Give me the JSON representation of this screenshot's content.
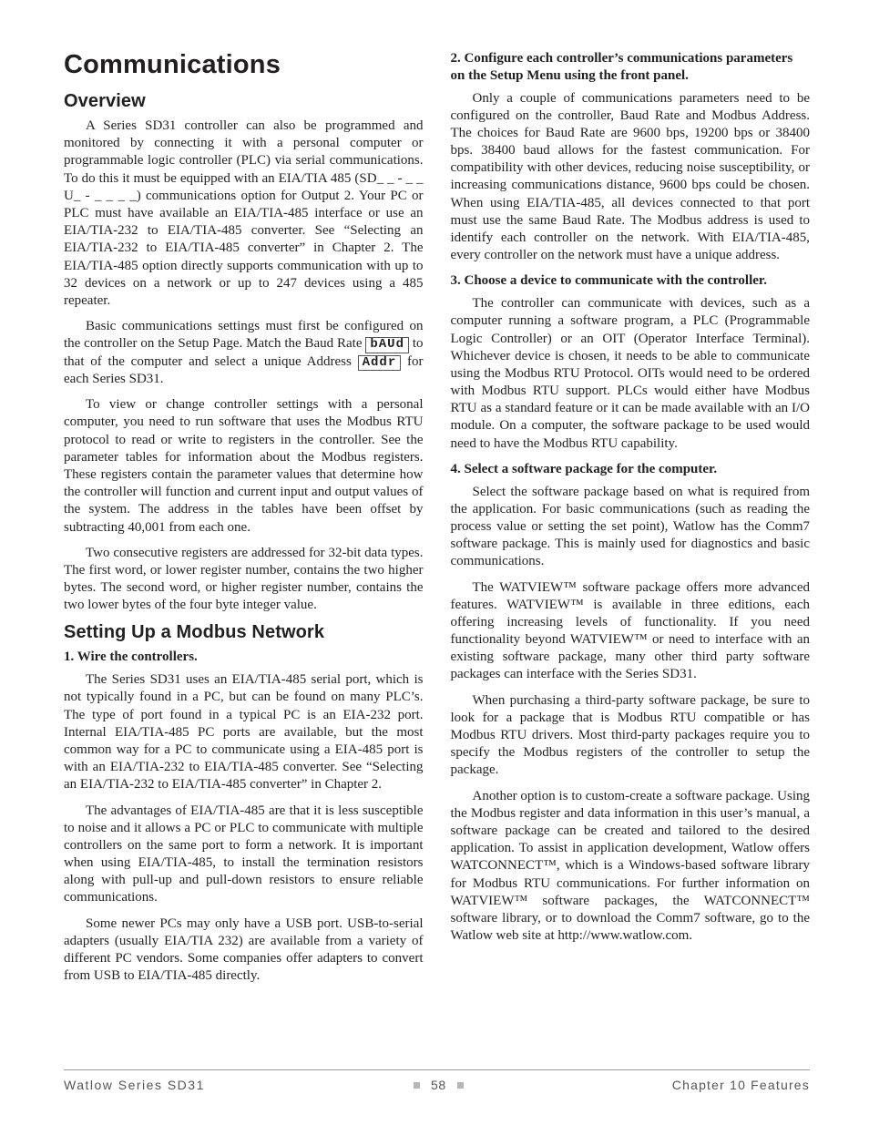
{
  "title": "Communications",
  "left": {
    "overview": {
      "heading": "Overview",
      "p1": "A Series SD31 controller can also be programmed and monitored by connecting it with a personal computer or programmable logic controller (PLC) via serial communications. To do this it must be equipped with an EIA/TIA 485 (SD_ _ - _ _ U_ - _ _ _ _) communications option for Output 2. Your PC or PLC must have available an EIA/TIA-485 interface or use an EIA/TIA-232 to EIA/TIA-485 converter. See “Selecting an EIA/TIA-232 to EIA/TIA-485 converter” in Chapter 2. The EIA/TIA-485 option directly supports communication with up to 32 devices on a network or up to 247 devices using a 485 repeater.",
      "p2a": "Basic communications settings must first be configured on the controller on the Setup Page. Match the Baud Rate ",
      "p2_seg1": "bAUd",
      "p2b": " to that of the computer and select a unique Address ",
      "p2_seg2": "Addr",
      "p2c": " for each Series SD31.",
      "p3": "To view or change controller settings with a personal computer, you need to run software that uses the Modbus RTU protocol to read or write to registers in the controller. See the parameter tables for information about the Modbus registers. These registers contain the parameter values that determine how the controller will function and current input and output values of the system. The address in the tables have been offset by subtracting 40,001 from each one.",
      "p4": "Two consecutive registers are addressed for 32-bit data types. The first word, or lower register number, contains the two higher bytes. The second word, or higher register number, contains the two lower bytes of the four byte integer value."
    },
    "setup": {
      "heading": "Setting Up a Modbus Network",
      "step1": "1. Wire the controllers.",
      "p1": "The Series SD31 uses an EIA/TIA-485 serial port, which is not typically found in a PC, but can be found on many PLC’s. The type of port found in a typical PC is an EIA-232 port. Internal EIA/TIA-485 PC ports are available, but the most common way for a PC to communicate using a EIA-485 port is with an EIA/TIA-232 to EIA/TIA-485 converter. See “Selecting an EIA/TIA-232 to EIA/TIA-485 converter” in Chapter 2.",
      "p2": "The advantages of EIA/TIA-485 are that it is less susceptible to noise and it allows a PC or PLC to communicate with multiple controllers on the same port to form a network. It is important when using EIA/TIA-485, to install the termination resistors along with pull-up and pull-down resistors to ensure reliable communications.",
      "p3": "Some newer PCs may only have a USB port. USB-to-serial adapters (usually EIA/TIA 232) are available from a variety of different PC vendors. Some companies offer adapters to convert from USB to EIA/TIA-485 directly."
    }
  },
  "right": {
    "step2": "2. Configure each controller’s communications parameters on the Setup Menu using the front panel.",
    "p1": "Only a couple of communications parameters need to be configured on the controller, Baud Rate and Modbus Address. The choices for Baud Rate are 9600 bps, 19200 bps or 38400 bps. 38400 baud allows for the fastest communication. For compatibility with other devices, reducing noise susceptibility, or increasing communications distance, 9600 bps could be chosen. When using EIA/TIA-485, all devices connected to that port must use the same Baud Rate. The Modbus address is used to identify each controller on the network. With EIA/TIA-485, every controller on the network must have a unique address.",
    "step3": "3. Choose a device to communicate with the controller.",
    "p2": "The controller can communicate with devices, such as a computer running a software program, a PLC (Programmable Logic Controller) or an OIT (Operator Interface Terminal). Whichever device is chosen, it needs to be able to communicate using the Modbus RTU Protocol. OITs would need to be ordered with Modbus RTU support. PLCs would either have Modbus RTU as a standard feature or it can be made available with an I/O module. On a computer, the software package to be used would need to have the Modbus RTU capability.",
    "step4": "4. Select a software package for the computer.",
    "p3": "Select the software package based on what is required from the application. For basic communications (such as reading the process value or setting the set point), Watlow has the Comm7 software package. This is mainly used for diagnostics and basic communications.",
    "p4": "The WATVIEW™ software package offers more advanced features. WATVIEW™ is available in three editions, each offering increasing levels of functionality. If you need functionality beyond WATVIEW™ or need to interface with an existing software package, many other third party software packages can interface with the Series SD31.",
    "p5": "When purchasing a third-party software package, be sure to look for a package that is Modbus RTU compatible or has Modbus RTU drivers. Most third-party packages require you to specify the Modbus registers of the controller to setup the package.",
    "p6": "Another option is to custom-create a software package. Using the Modbus register and data information in this user’s manual, a software package can be created and tailored to the desired application. To assist in application development, Watlow offers WATCONNECT™, which is a Windows-based software library for Modbus RTU communications. For further information on WATVIEW™ software packages, the WATCONNECT™ software library, or to download the Comm7 software, go to the Watlow web site at http://www.watlow.com."
  },
  "footer": {
    "left": "Watlow Series SD31",
    "page": "58",
    "right": "Chapter 10 Features"
  }
}
